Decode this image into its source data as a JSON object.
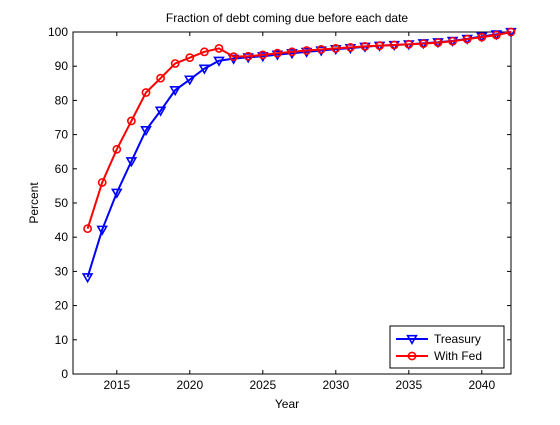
{
  "chart_data": {
    "type": "line",
    "title": "Fraction of debt coming due before each date",
    "xlabel": "Year",
    "ylabel": "Percent",
    "xlim": [
      2012,
      2042
    ],
    "ylim": [
      0,
      100
    ],
    "xticks": [
      2015,
      2020,
      2025,
      2030,
      2035,
      2040
    ],
    "yticks": [
      0,
      10,
      20,
      30,
      40,
      50,
      60,
      70,
      80,
      90,
      100
    ],
    "grid": false,
    "legend_position": "bottom-right",
    "x": [
      2013,
      2014,
      2015,
      2016,
      2017,
      2018,
      2019,
      2020,
      2021,
      2022,
      2023,
      2024,
      2025,
      2026,
      2027,
      2028,
      2029,
      2030,
      2031,
      2032,
      2033,
      2034,
      2035,
      2036,
      2037,
      2038,
      2039,
      2040,
      2041,
      2042
    ],
    "series": [
      {
        "name": "Treasury",
        "color": "#0000ff",
        "marker": "triangle-down",
        "values": [
          28.3,
          42.2,
          53.0,
          62.2,
          71.3,
          77.0,
          83.0,
          86.1,
          89.3,
          91.6,
          92.2,
          92.6,
          92.9,
          93.4,
          93.8,
          94.2,
          94.6,
          95.0,
          95.3,
          95.7,
          96.0,
          96.2,
          96.4,
          96.7,
          97.0,
          97.4,
          98.0,
          98.7,
          99.3,
          100.0
        ]
      },
      {
        "name": "With Fed",
        "color": "#ff0000",
        "marker": "circle",
        "values": [
          42.5,
          56.0,
          65.7,
          74.0,
          82.3,
          86.5,
          90.8,
          92.5,
          94.2,
          95.2,
          92.8,
          92.9,
          93.3,
          93.8,
          94.2,
          94.6,
          94.9,
          95.2,
          95.5,
          95.8,
          96.0,
          96.2,
          96.4,
          96.6,
          96.9,
          97.3,
          97.9,
          98.5,
          99.1,
          100.0
        ]
      }
    ]
  }
}
